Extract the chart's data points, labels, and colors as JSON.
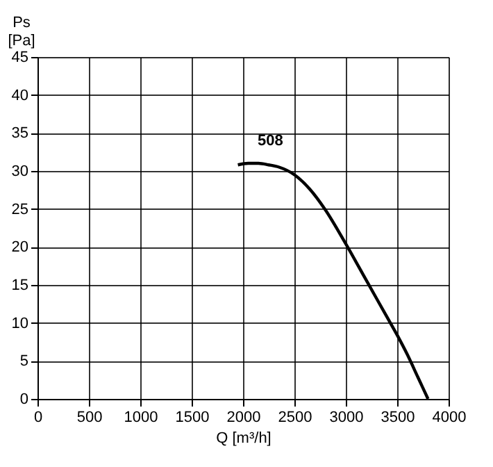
{
  "chart_data": {
    "type": "line",
    "xlabel": "Q [m³/h]",
    "ylabel": "Ps [Pa]",
    "x": [
      1950,
      2050,
      2150,
      2250,
      2350,
      2500,
      2650,
      2800,
      3000,
      3200,
      3400,
      3500,
      3600,
      3700,
      3800
    ],
    "series": [
      {
        "name": "508",
        "color": "#000000",
        "values": [
          30.8,
          31.0,
          31.0,
          30.8,
          30.5,
          29.5,
          27.6,
          24.9,
          20.4,
          15.6,
          10.8,
          8.4,
          5.8,
          2.9,
          0
        ]
      }
    ],
    "xlim": [
      0,
      4000
    ],
    "xticks": [
      0,
      500,
      1000,
      1500,
      2000,
      2500,
      3000,
      3500,
      4000
    ],
    "ylim": [
      0,
      45
    ],
    "yticks": [
      0,
      5,
      10,
      15,
      20,
      25,
      30,
      35,
      40,
      45
    ],
    "grid": true,
    "marker": "none",
    "line_style": "solid"
  }
}
